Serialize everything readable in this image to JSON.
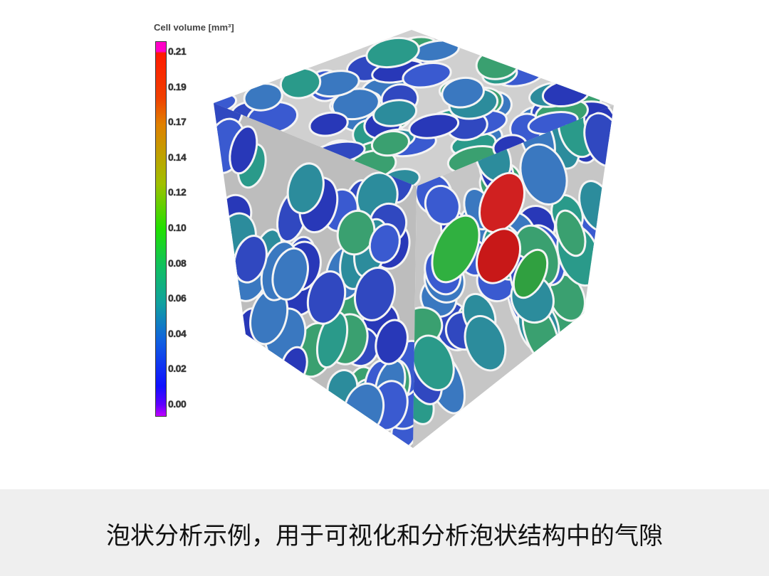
{
  "colorbar": {
    "title": "Cell volume [mm³]",
    "ticks": [
      "0.21",
      "0.19",
      "0.17",
      "0.14",
      "0.12",
      "0.10",
      "0.08",
      "0.06",
      "0.04",
      "0.02",
      "0.00"
    ],
    "colors": {
      "max": "#ff00c8",
      "high": "#ff1a00",
      "mid": "#20e000",
      "low": "#1010ff",
      "min": "#c000ff"
    }
  },
  "render": {
    "description_colors": {
      "matrix": "#c8c8c8",
      "cell_blue": "#3a55c8",
      "cell_teal": "#2a9a8a",
      "cell_green": "#30b040",
      "cell_red": "#d02020"
    }
  },
  "caption": "泡状分析示例，用于可视化和分析泡状结构中的气隙"
}
